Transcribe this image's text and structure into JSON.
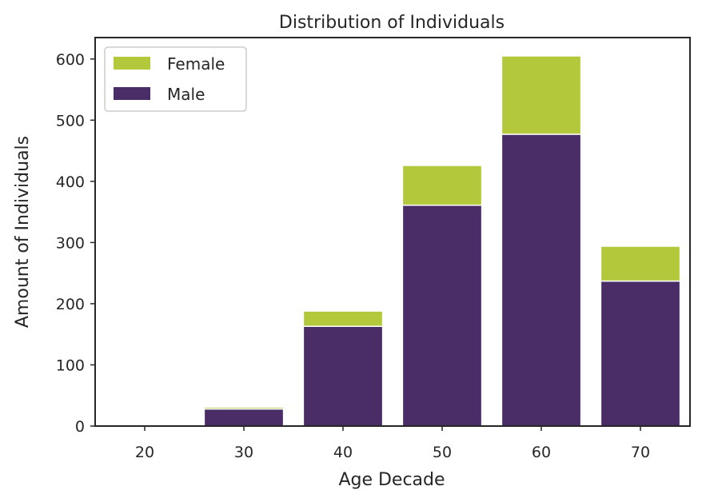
{
  "chart_data": {
    "type": "bar",
    "stacked": true,
    "title": "Distribution of Individuals",
    "xlabel": "Age Decade",
    "ylabel": "Amount of Individuals",
    "categories": [
      "20",
      "30",
      "40",
      "50",
      "60",
      "70"
    ],
    "series": [
      {
        "name": "Male",
        "color": "#4a2c66",
        "values": [
          0,
          28,
          163,
          361,
          477,
          237
        ]
      },
      {
        "name": "Female",
        "color": "#b3c93b",
        "values": [
          0,
          3,
          25,
          65,
          128,
          57
        ]
      }
    ],
    "ylim": [
      0,
      635
    ],
    "yticks": [
      0,
      100,
      200,
      300,
      400,
      500,
      600
    ],
    "grid": false,
    "legend": {
      "placement": "top-left",
      "order": [
        "Female",
        "Male"
      ]
    }
  }
}
